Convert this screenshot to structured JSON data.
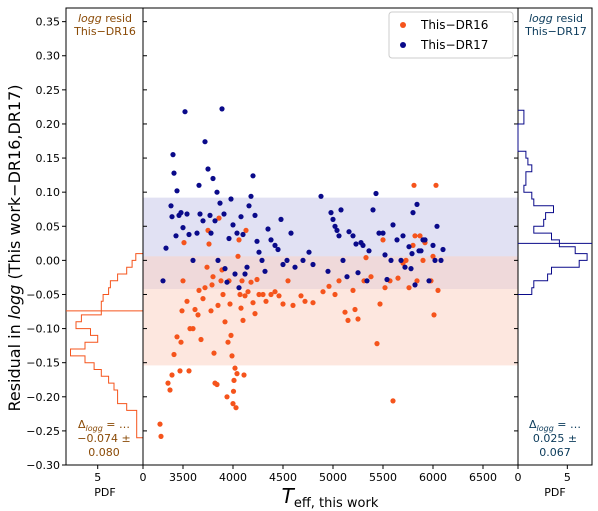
{
  "chart_data": {
    "type": "scatter",
    "xlabel": "T",
    "xlabel_sub": "eff, this work",
    "ylabel_pre": "Residual in ",
    "ylabel_ital": "logg",
    "ylabel_post": " (This work−DR16,DR17)",
    "xlim": [
      3100,
      6850
    ],
    "ylim": [
      -0.3,
      0.37
    ],
    "x_ticks": [
      3500,
      4000,
      4500,
      5000,
      5500,
      6000,
      6500
    ],
    "y_ticks": [
      -0.3,
      -0.25,
      -0.2,
      -0.15,
      -0.1,
      -0.05,
      0.0,
      0.05,
      0.1,
      0.15,
      0.2,
      0.25,
      0.3,
      0.35
    ],
    "grid": false,
    "legend_position": "top-right",
    "bands": [
      {
        "series": "This−DR17",
        "y0": -0.042,
        "y1": 0.092,
        "color": "#c9c9ea"
      },
      {
        "series": "This−DR16",
        "y0": -0.154,
        "y1": 0.006,
        "color": "#fcd4c4"
      }
    ],
    "series": [
      {
        "name": "This−DR16",
        "color": "#f5541c",
        "points": [
          [
            3270,
            -0.24
          ],
          [
            3280,
            -0.258
          ],
          [
            3350,
            -0.18
          ],
          [
            3370,
            -0.19
          ],
          [
            3390,
            -0.168
          ],
          [
            3410,
            -0.138
          ],
          [
            3440,
            -0.112
          ],
          [
            3470,
            -0.162
          ],
          [
            3480,
            -0.12
          ],
          [
            3490,
            -0.074
          ],
          [
            3500,
            -0.03
          ],
          [
            3510,
            0.026
          ],
          [
            3540,
            -0.06
          ],
          [
            3560,
            -0.162
          ],
          [
            3570,
            -0.1
          ],
          [
            3600,
            -0.1
          ],
          [
            3620,
            -0.072
          ],
          [
            3650,
            -0.08
          ],
          [
            3660,
            -0.044
          ],
          [
            3680,
            -0.116
          ],
          [
            3700,
            -0.056
          ],
          [
            3720,
            -0.04
          ],
          [
            3740,
            -0.01
          ],
          [
            3750,
            0.044
          ],
          [
            3760,
            0.024
          ],
          [
            3780,
            -0.074
          ],
          [
            3790,
            -0.036
          ],
          [
            3800,
            -0.024
          ],
          [
            3810,
            -0.136
          ],
          [
            3820,
            -0.18
          ],
          [
            3840,
            -0.182
          ],
          [
            3850,
            -0.066
          ],
          [
            3860,
            0.062
          ],
          [
            3880,
            -0.03
          ],
          [
            3890,
            -0.014
          ],
          [
            3900,
            -0.05
          ],
          [
            3920,
            -0.09
          ],
          [
            3940,
            -0.2
          ],
          [
            3950,
            -0.12
          ],
          [
            3960,
            -0.03
          ],
          [
            3970,
            -0.064
          ],
          [
            3980,
            -0.11
          ],
          [
            3990,
            -0.14
          ],
          [
            4000,
            -0.21
          ],
          [
            4005,
            -0.192
          ],
          [
            4010,
            -0.176
          ],
          [
            4020,
            -0.158
          ],
          [
            4030,
            -0.216
          ],
          [
            4040,
            -0.166
          ],
          [
            4050,
            0.006
          ],
          [
            4060,
            0.03
          ],
          [
            4070,
            -0.05
          ],
          [
            4080,
            -0.07
          ],
          [
            4090,
            -0.03
          ],
          [
            4100,
            -0.088
          ],
          [
            4110,
            -0.168
          ],
          [
            4120,
            -0.052
          ],
          [
            4130,
            0.044
          ],
          [
            4150,
            -0.046
          ],
          [
            4180,
            -0.032
          ],
          [
            4200,
            -0.062
          ],
          [
            4220,
            -0.078
          ],
          [
            4240,
            -0.028
          ],
          [
            4260,
            -0.05
          ],
          [
            4300,
            -0.05
          ],
          [
            4330,
            -0.06
          ],
          [
            4380,
            -0.05
          ],
          [
            4420,
            -0.046
          ],
          [
            4460,
            -0.052
          ],
          [
            4500,
            -0.064
          ],
          [
            4550,
            -0.03
          ],
          [
            4600,
            -0.066
          ],
          [
            4680,
            -0.052
          ],
          [
            4720,
            -0.06
          ],
          [
            4800,
            -0.062
          ],
          [
            4900,
            -0.046
          ],
          [
            4960,
            -0.038
          ],
          [
            5020,
            -0.05
          ],
          [
            5060,
            -0.03
          ],
          [
            5120,
            -0.076
          ],
          [
            5150,
            -0.088
          ],
          [
            5200,
            -0.044
          ],
          [
            5220,
            -0.072
          ],
          [
            5250,
            -0.086
          ],
          [
            5310,
            -0.03
          ],
          [
            5330,
            0.004
          ],
          [
            5380,
            -0.024
          ],
          [
            5440,
            -0.122
          ],
          [
            5470,
            -0.064
          ],
          [
            5500,
            0.03
          ],
          [
            5520,
            -0.04
          ],
          [
            5570,
            -0.03
          ],
          [
            5600,
            -0.206
          ],
          [
            5650,
            -0.026
          ],
          [
            5700,
            -0.004
          ],
          [
            5730,
            0.0
          ],
          [
            5760,
            -0.04
          ],
          [
            5800,
            0.022
          ],
          [
            5810,
            0.11
          ],
          [
            5820,
            0.036
          ],
          [
            5840,
            -0.03
          ],
          [
            5870,
            0.036
          ],
          [
            5900,
            0.0
          ],
          [
            5920,
            0.026
          ],
          [
            5980,
            -0.03
          ],
          [
            6000,
            0.006
          ],
          [
            6010,
            -0.08
          ],
          [
            6030,
            0.11
          ],
          [
            6050,
            -0.044
          ]
        ]
      },
      {
        "name": "This−DR17",
        "color": "#0a0a8a",
        "points": [
          [
            3300,
            -0.03
          ],
          [
            3330,
            0.018
          ],
          [
            3380,
            0.08
          ],
          [
            3390,
            0.064
          ],
          [
            3400,
            0.155
          ],
          [
            3410,
            0.128
          ],
          [
            3430,
            0.036
          ],
          [
            3440,
            0.102
          ],
          [
            3460,
            0.066
          ],
          [
            3480,
            0.07
          ],
          [
            3500,
            0.048
          ],
          [
            3520,
            0.218
          ],
          [
            3540,
            0.068
          ],
          [
            3560,
            0.038
          ],
          [
            3600,
            0.0
          ],
          [
            3640,
            0.04
          ],
          [
            3660,
            0.11
          ],
          [
            3670,
            0.068
          ],
          [
            3700,
            0.058
          ],
          [
            3720,
            0.174
          ],
          [
            3750,
            0.134
          ],
          [
            3770,
            0.066
          ],
          [
            3780,
            0.04
          ],
          [
            3800,
            0.12
          ],
          [
            3820,
            0.058
          ],
          [
            3840,
            0.1
          ],
          [
            3850,
            0.0
          ],
          [
            3870,
            0.084
          ],
          [
            3890,
            0.222
          ],
          [
            3910,
            0.068
          ],
          [
            3920,
            -0.012
          ],
          [
            3940,
            -0.032
          ],
          [
            3960,
            0.032
          ],
          [
            3980,
            0.09
          ],
          [
            4000,
            0.052
          ],
          [
            4020,
            -0.02
          ],
          [
            4040,
            0.04
          ],
          [
            4060,
            -0.04
          ],
          [
            4080,
            0.064
          ],
          [
            4100,
            0.038
          ],
          [
            4120,
            -0.02
          ],
          [
            4140,
            -0.01
          ],
          [
            4160,
            0.08
          ],
          [
            4180,
            0.094
          ],
          [
            4200,
            0.124
          ],
          [
            4220,
            0.066
          ],
          [
            4240,
            0.028
          ],
          [
            4260,
            0.012
          ],
          [
            4290,
            0.0
          ],
          [
            4320,
            -0.016
          ],
          [
            4350,
            0.046
          ],
          [
            4380,
            0.03
          ],
          [
            4420,
            0.022
          ],
          [
            4450,
            0.016
          ],
          [
            4480,
            0.06
          ],
          [
            4500,
            -0.006
          ],
          [
            4540,
            0.0
          ],
          [
            4580,
            0.04
          ],
          [
            4620,
            -0.01
          ],
          [
            4700,
            0.0
          ],
          [
            4760,
            0.012
          ],
          [
            4800,
            -0.006
          ],
          [
            4880,
            0.094
          ],
          [
            4950,
            -0.016
          ],
          [
            4980,
            0.07
          ],
          [
            5000,
            0.06
          ],
          [
            5020,
            0.05
          ],
          [
            5040,
            0.044
          ],
          [
            5060,
            0.036
          ],
          [
            5080,
            0.074
          ],
          [
            5100,
            0.0
          ],
          [
            5140,
            -0.024
          ],
          [
            5160,
            0.042
          ],
          [
            5200,
            0.036
          ],
          [
            5230,
            0.024
          ],
          [
            5250,
            -0.018
          ],
          [
            5280,
            0.026
          ],
          [
            5300,
            0.022
          ],
          [
            5340,
            -0.03
          ],
          [
            5360,
            0.014
          ],
          [
            5400,
            0.074
          ],
          [
            5430,
            0.098
          ],
          [
            5460,
            0.04
          ],
          [
            5500,
            0.04
          ],
          [
            5520,
            0.008
          ],
          [
            5540,
            -0.028
          ],
          [
            5580,
            0.0
          ],
          [
            5600,
            0.052
          ],
          [
            5640,
            0.03
          ],
          [
            5680,
            0.0
          ],
          [
            5700,
            0.036
          ],
          [
            5720,
            -0.01
          ],
          [
            5760,
            0.02
          ],
          [
            5780,
            -0.012
          ],
          [
            5790,
            0.01
          ],
          [
            5800,
            0.07
          ],
          [
            5820,
            -0.036
          ],
          [
            5840,
            0.082
          ],
          [
            5860,
            0.014
          ],
          [
            5880,
            0.014
          ],
          [
            5900,
            0.03
          ],
          [
            5920,
            0.03
          ],
          [
            5960,
            -0.03
          ],
          [
            6000,
            0.022
          ],
          [
            6020,
            0.0
          ],
          [
            6040,
            0.05
          ],
          [
            6080,
            0.0
          ],
          [
            6100,
            0.016
          ]
        ]
      }
    ],
    "left_histogram": {
      "title_ital": "logg",
      "title_post": " resid",
      "title_line2": "This−DR16",
      "color": "#f5541c",
      "xlabel": "PDF",
      "x_ticks": [
        5,
        0
      ],
      "xlim": [
        0,
        8.5
      ],
      "bin_width": 0.01,
      "bins_start": -0.26,
      "values": [
        0.7,
        0.7,
        0.7,
        0.7,
        1.8,
        2.8,
        2.8,
        3.2,
        3.8,
        4.6,
        5.4,
        6.4,
        8.0,
        6.4,
        5.0,
        5.8,
        7.4,
        6.8,
        4.6,
        4.6,
        4.4,
        3.8,
        3.6,
        2.8,
        1.8,
        1.2,
        0.8
      ],
      "median": -0.074,
      "annotation_line1": "Δ",
      "annotation_sub": "logg",
      "annotation_eq": " = …",
      "annotation_line2": "−0.074 ±",
      "annotation_line3": "0.080"
    },
    "right_histogram": {
      "title_ital": "logg",
      "title_post": " resid",
      "title_line2": "This−DR17",
      "color": "#0a0a8a",
      "xlabel": "PDF",
      "x_ticks": [
        0,
        5
      ],
      "xlim": [
        0,
        7.5
      ],
      "bin_width": 0.01,
      "bins_start": -0.05,
      "values": [
        1.4,
        1.6,
        3.0,
        3.4,
        6.2,
        7.0,
        5.8,
        4.2,
        3.4,
        1.6,
        2.6,
        2.8,
        3.6,
        1.6,
        1.4,
        0.6,
        0.8,
        0.8,
        1.4,
        1.0,
        0.8,
        0.0,
        0.0,
        0.0,
        0.0,
        0.6,
        0.6
      ],
      "median": 0.025,
      "annotation_line1": "Δ",
      "annotation_sub": "logg",
      "annotation_eq": " = …",
      "annotation_line2": "0.025 ±",
      "annotation_line3": "0.067"
    }
  }
}
